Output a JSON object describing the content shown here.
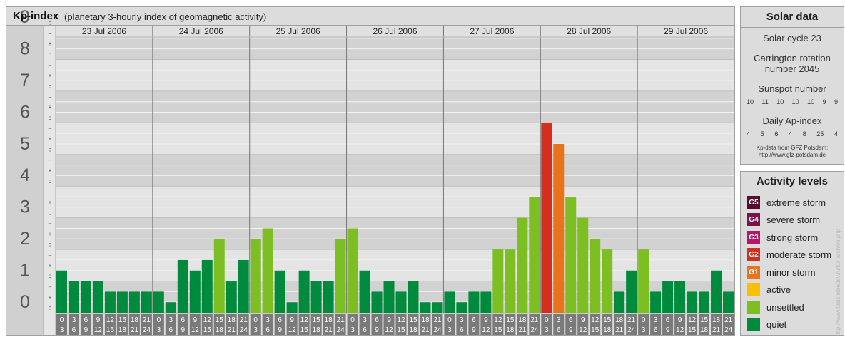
{
  "watermark": "http://www.tesis.lebedev.ru/kp_archive.php",
  "solar": {
    "title": "Solar data",
    "cycle": "Solar cycle 23",
    "carrington_line1": "Carrington rotation",
    "carrington_line2": "number 2045",
    "sunspot_label": "Sunspot number",
    "sunspot_values": [
      "10",
      "11",
      "10",
      "10",
      "10",
      "9",
      "9"
    ],
    "ap_label": "Daily Ap-index",
    "ap_values": [
      "4",
      "5",
      "6",
      "4",
      "8",
      "25",
      "4"
    ],
    "credit_line1": "Kp-data from GFZ Potsdam:",
    "credit_line2": "http://www.gfz-potsdam.de"
  },
  "activity": {
    "title": "Activity levels",
    "items": [
      {
        "badge": "G5",
        "label": "extreme storm",
        "color": "#5a0a2a"
      },
      {
        "badge": "G4",
        "label": "severe storm",
        "color": "#7a1248"
      },
      {
        "badge": "G3",
        "label": "strong storm",
        "color": "#b8156a"
      },
      {
        "badge": "G2",
        "label": "moderate storm",
        "color": "#d42e1e"
      },
      {
        "badge": "G1",
        "label": "minor storm",
        "color": "#e77418"
      },
      {
        "badge": "",
        "label": "active",
        "color": "#f8c000"
      },
      {
        "badge": "",
        "label": "unsettled",
        "color": "#7dbf22"
      },
      {
        "badge": "",
        "label": "quiet",
        "color": "#008a3e"
      }
    ]
  },
  "chart_data": {
    "type": "bar",
    "title": "Kp-index",
    "subtitle": "(planetary 3-hourly index of geomagnetic activity)",
    "ylim": [
      0,
      9
    ],
    "y_ticks": [
      "0",
      "1",
      "2",
      "3",
      "4",
      "5",
      "6",
      "7",
      "8",
      "9"
    ],
    "sub_ticks": [
      "o",
      "+",
      "–"
    ],
    "days": [
      "23 Jul 2006",
      "24 Jul 2006",
      "25 Jul 2006",
      "26 Jul 2006",
      "27 Jul 2006",
      "28 Jul 2006",
      "29 Jul 2006"
    ],
    "interval_start": [
      "0",
      "3",
      "6",
      "9",
      "12",
      "15",
      "18",
      "21"
    ],
    "interval_end": [
      "3",
      "6",
      "9",
      "12",
      "15",
      "18",
      "21",
      "24"
    ],
    "values": [
      1.333,
      1.0,
      1.0,
      1.0,
      0.667,
      0.667,
      0.667,
      0.667,
      0.667,
      0.333,
      1.667,
      1.333,
      1.667,
      2.333,
      1.0,
      1.667,
      2.333,
      2.667,
      1.333,
      0.333,
      1.333,
      1.0,
      1.0,
      2.333,
      2.667,
      1.333,
      0.667,
      1.0,
      0.667,
      1.0,
      0.333,
      0.333,
      0.667,
      0.333,
      0.667,
      0.667,
      2.0,
      2.0,
      3.0,
      3.667,
      6.0,
      5.333,
      3.667,
      3.0,
      2.333,
      2.0,
      0.667,
      1.333,
      2.0,
      0.667,
      1.0,
      1.0,
      0.667,
      0.667,
      1.333,
      0.667
    ],
    "level_colors": {
      "quiet": "#008a3e",
      "unsettled": "#7dbf22",
      "active": "#f8c000",
      "G1": "#e77418",
      "G2": "#d42e1e"
    }
  }
}
